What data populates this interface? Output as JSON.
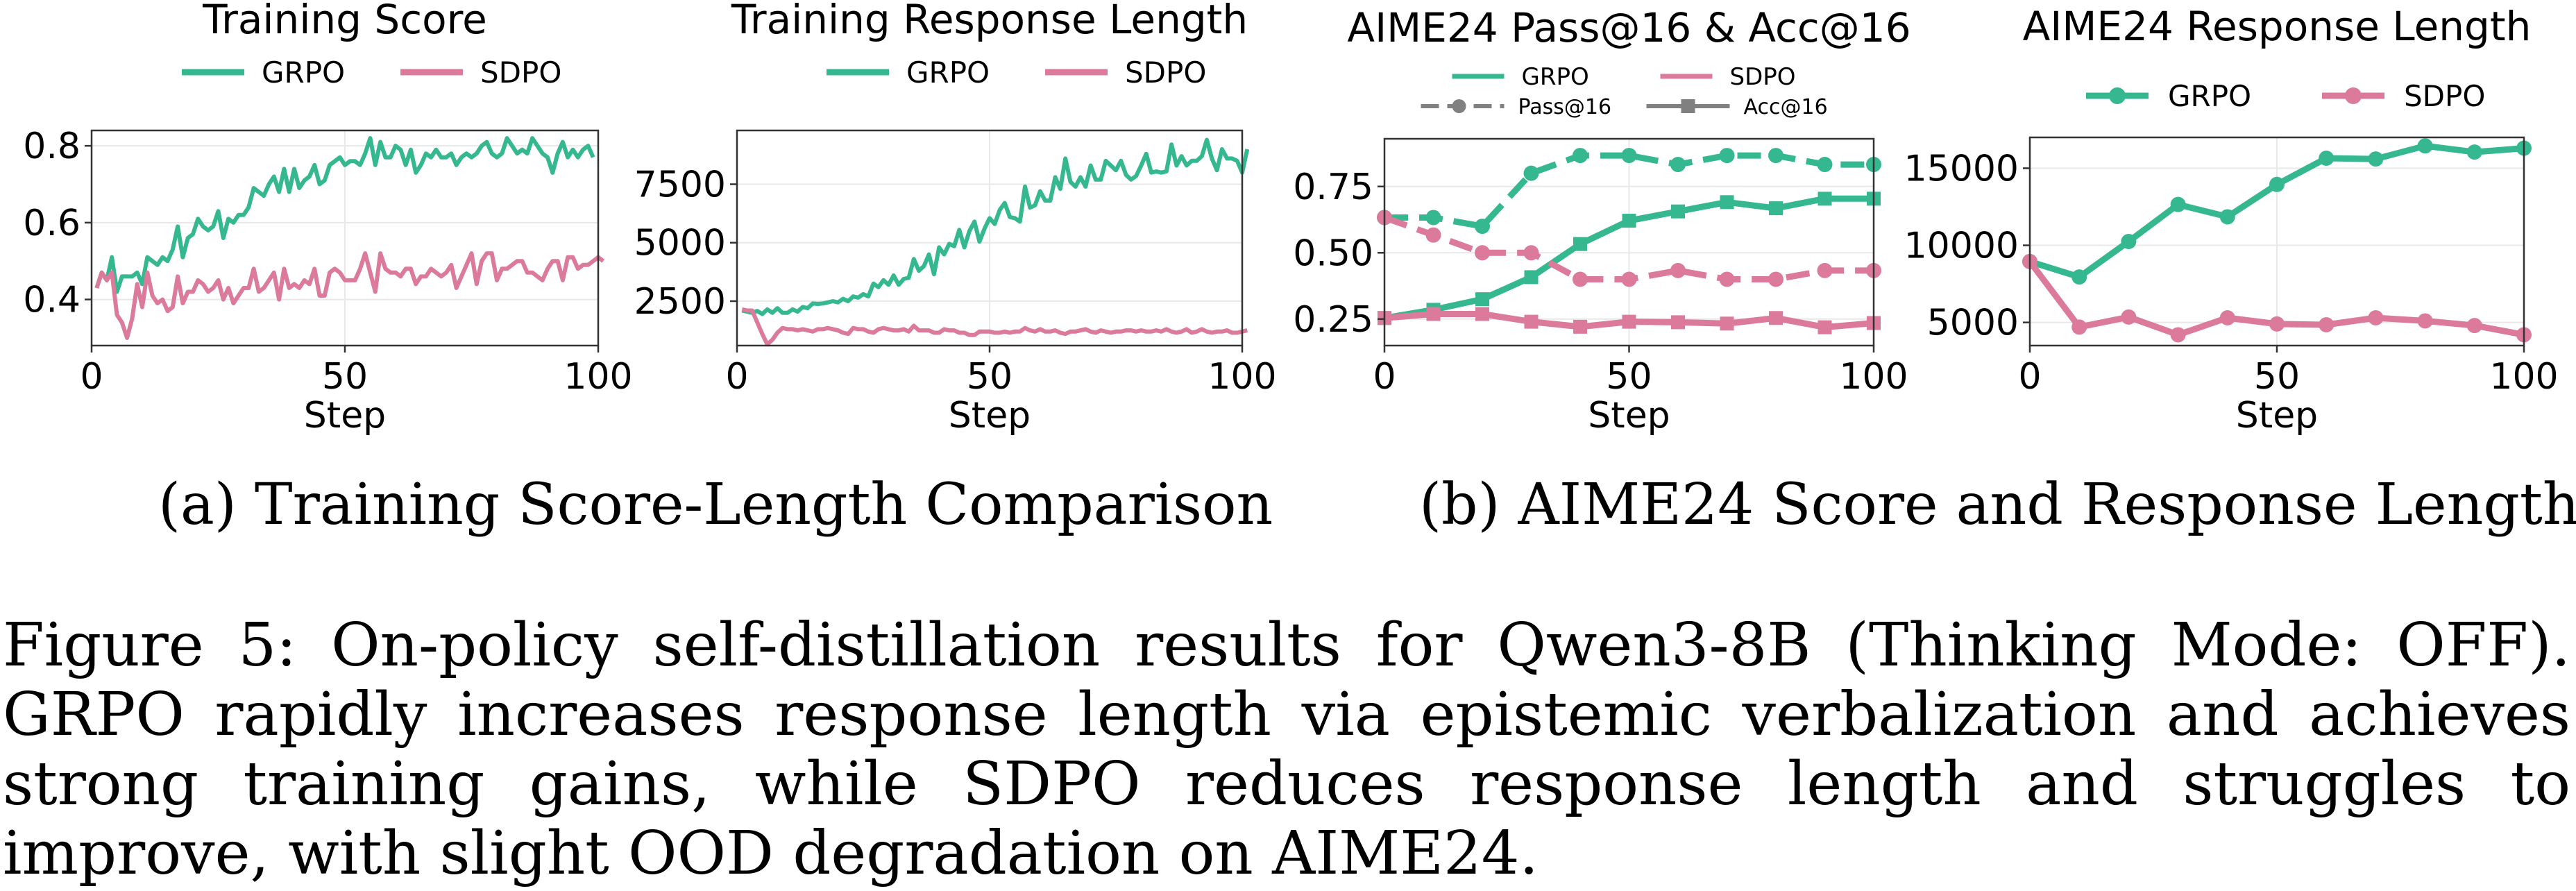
{
  "colors": {
    "grpo": "#35b890",
    "sdpo": "#db7a9a",
    "legend_gray": "#808080",
    "grid": "#e8e8e8",
    "axis": "#333333"
  },
  "subcaptions": {
    "a": "(a) Training Score-Length Comparison",
    "b": "(b) AIME24 Score and Response Length"
  },
  "caption": "Figure 5: On-policy self-distillation results for Qwen3-8B (Thinking Mode: OFF). GRPO rapidly increases response length via epistemic verbalization and achieves strong training gains, while SDPO reduces response length and struggles to improve, with slight OOD degradation on AIME24.",
  "chart_data": [
    {
      "type": "line",
      "title": "Training Score",
      "xlabel": "Step",
      "ylabel": "",
      "xlim": [
        0,
        100
      ],
      "ylim": [
        0.28,
        0.84
      ],
      "xticks": [
        0,
        50,
        100
      ],
      "yticks": [
        0.4,
        0.6,
        0.8
      ],
      "ytick_labels": [
        "0.4",
        "0.6",
        "0.8"
      ],
      "grid": true,
      "legend": {
        "placement": "top",
        "entries": [
          "GRPO",
          "SDPO"
        ]
      },
      "series": [
        {
          "name": "GRPO",
          "x_start": 1,
          "values": [
            0.43,
            0.47,
            0.45,
            0.51,
            0.42,
            0.46,
            0.46,
            0.46,
            0.47,
            0.44,
            0.51,
            0.5,
            0.49,
            0.51,
            0.5,
            0.53,
            0.59,
            0.51,
            0.56,
            0.57,
            0.61,
            0.59,
            0.58,
            0.59,
            0.63,
            0.56,
            0.61,
            0.6,
            0.62,
            0.62,
            0.64,
            0.69,
            0.68,
            0.67,
            0.7,
            0.72,
            0.68,
            0.74,
            0.68,
            0.74,
            0.69,
            0.71,
            0.72,
            0.75,
            0.7,
            0.71,
            0.75,
            0.76,
            0.77,
            0.75,
            0.76,
            0.76,
            0.75,
            0.78,
            0.82,
            0.75,
            0.81,
            0.77,
            0.77,
            0.8,
            0.79,
            0.75,
            0.79,
            0.73,
            0.75,
            0.78,
            0.77,
            0.79,
            0.77,
            0.77,
            0.78,
            0.75,
            0.77,
            0.78,
            0.77,
            0.78,
            0.8,
            0.81,
            0.78,
            0.77,
            0.78,
            0.82,
            0.8,
            0.78,
            0.79,
            0.78,
            0.82,
            0.8,
            0.78,
            0.77,
            0.73,
            0.78,
            0.81,
            0.77,
            0.79,
            0.77,
            0.79,
            0.8,
            0.77
          ]
        },
        {
          "name": "SDPO",
          "x_start": 1,
          "values": [
            0.43,
            0.47,
            0.45,
            0.47,
            0.36,
            0.34,
            0.3,
            0.35,
            0.44,
            0.38,
            0.47,
            0.41,
            0.39,
            0.4,
            0.37,
            0.38,
            0.46,
            0.39,
            0.42,
            0.42,
            0.45,
            0.44,
            0.42,
            0.43,
            0.45,
            0.4,
            0.43,
            0.39,
            0.41,
            0.43,
            0.43,
            0.48,
            0.42,
            0.43,
            0.45,
            0.47,
            0.4,
            0.48,
            0.43,
            0.44,
            0.43,
            0.45,
            0.44,
            0.48,
            0.41,
            0.41,
            0.47,
            0.48,
            0.47,
            0.45,
            0.45,
            0.45,
            0.48,
            0.52,
            0.47,
            0.42,
            0.52,
            0.48,
            0.47,
            0.47,
            0.46,
            0.48,
            0.48,
            0.44,
            0.46,
            0.46,
            0.48,
            0.47,
            0.46,
            0.47,
            0.49,
            0.43,
            0.46,
            0.49,
            0.52,
            0.44,
            0.5,
            0.52,
            0.52,
            0.45,
            0.48,
            0.48,
            0.49,
            0.5,
            0.5,
            0.47,
            0.47,
            0.46,
            0.45,
            0.48,
            0.5,
            0.5,
            0.45,
            0.51,
            0.51,
            0.48,
            0.49,
            0.49,
            0.5,
            0.51,
            0.5
          ]
        }
      ]
    },
    {
      "type": "line",
      "title": "Training Response Length",
      "xlabel": "Step",
      "ylabel": "",
      "xlim": [
        0,
        100
      ],
      "ylim": [
        600,
        9800
      ],
      "xticks": [
        0,
        50,
        100
      ],
      "yticks": [
        2500,
        5000,
        7500
      ],
      "ytick_labels": [
        "2500",
        "5000",
        "7500"
      ],
      "grid": true,
      "legend": {
        "placement": "top",
        "entries": [
          "GRPO",
          "SDPO"
        ]
      },
      "series": [
        {
          "name": "GRPO",
          "x_start": 1,
          "values": [
            2100,
            2050,
            2000,
            2080,
            1950,
            2150,
            2000,
            2200,
            2000,
            2000,
            2150,
            2050,
            2250,
            2200,
            2400,
            2380,
            2400,
            2450,
            2500,
            2450,
            2600,
            2500,
            2700,
            2650,
            2800,
            2700,
            3250,
            3100,
            3400,
            3200,
            3600,
            3200,
            3450,
            3500,
            4300,
            3800,
            4000,
            4500,
            3650,
            4800,
            4500,
            4950,
            4850,
            5550,
            4800,
            5500,
            5900,
            5050,
            5600,
            6050,
            5800,
            6400,
            6700,
            6100,
            6050,
            5900,
            7400,
            6500,
            6600,
            7200,
            6800,
            6800,
            7800,
            7300,
            8600,
            7600,
            7400,
            7800,
            7400,
            8300,
            7700,
            7700,
            8500,
            8300,
            8100,
            8500,
            7900,
            7700,
            7850,
            8300,
            8800,
            8000,
            8050,
            8000,
            8050,
            9200,
            8300,
            8700,
            8300,
            8500,
            8500,
            8700,
            9400,
            8600,
            8100,
            9000,
            8600,
            8600,
            8500,
            8000,
            9000
          ]
        },
        {
          "name": "SDPO",
          "x_start": 1,
          "values": [
            2150,
            2100,
            2100,
            1600,
            1100,
            650,
            850,
            1150,
            1350,
            1300,
            1300,
            1250,
            1300,
            1250,
            1200,
            1300,
            1300,
            1350,
            1300,
            1250,
            1150,
            1100,
            1350,
            1300,
            1300,
            1200,
            1150,
            1300,
            1350,
            1300,
            1250,
            1250,
            1300,
            1200,
            1450,
            1250,
            1250,
            1250,
            1150,
            1150,
            1300,
            1250,
            1250,
            1150,
            1150,
            1050,
            1050,
            1200,
            1200,
            1200,
            1150,
            1150,
            1200,
            1150,
            1200,
            1200,
            1350,
            1250,
            1200,
            1300,
            1200,
            1200,
            1250,
            1150,
            1100,
            1200,
            1200,
            1250,
            1300,
            1200,
            1150,
            1250,
            1200,
            1150,
            1200,
            1200,
            1250,
            1250,
            1200,
            1250,
            1200,
            1200,
            1250,
            1200,
            1300,
            1200,
            1150,
            1200,
            1300,
            1150,
            1200,
            1300,
            1200,
            1150,
            1200,
            1200,
            1250,
            1150,
            1150,
            1200,
            1250
          ]
        }
      ]
    },
    {
      "type": "line",
      "title": "AIME24 Pass@16 & Acc@16",
      "xlabel": "Step",
      "ylabel": "",
      "xlim": [
        0,
        100
      ],
      "ylim": [
        0.15,
        0.93
      ],
      "xticks": [
        0,
        50,
        100
      ],
      "yticks": [
        0.25,
        0.5,
        0.75
      ],
      "ytick_labels": [
        "0.25",
        "0.50",
        "0.75"
      ],
      "grid": true,
      "legend": {
        "placement": "top",
        "entries": [
          "GRPO",
          "SDPO",
          "Pass@16",
          "Acc@16"
        ]
      },
      "x": [
        0,
        10,
        20,
        30,
        40,
        50,
        60,
        70,
        80,
        90,
        100
      ],
      "series": [
        {
          "name": "GRPO Pass@16",
          "style": "dashed-circle",
          "values": [
            0.633,
            0.633,
            0.6,
            0.8,
            0.867,
            0.867,
            0.833,
            0.867,
            0.867,
            0.833,
            0.833
          ]
        },
        {
          "name": "GRPO Acc@16",
          "style": "solid-square",
          "values": [
            0.254,
            0.285,
            0.325,
            0.408,
            0.533,
            0.621,
            0.656,
            0.691,
            0.668,
            0.704,
            0.704
          ]
        },
        {
          "name": "SDPO Pass@16",
          "style": "dashed-circle",
          "values": [
            0.633,
            0.567,
            0.5,
            0.5,
            0.4,
            0.4,
            0.433,
            0.4,
            0.4,
            0.433,
            0.433
          ]
        },
        {
          "name": "SDPO Acc@16",
          "style": "solid-square",
          "values": [
            0.254,
            0.269,
            0.269,
            0.24,
            0.221,
            0.24,
            0.238,
            0.233,
            0.254,
            0.219,
            0.235
          ]
        }
      ]
    },
    {
      "type": "line",
      "title": "AIME24 Response Length",
      "xlabel": "Step",
      "ylabel": "",
      "xlim": [
        0,
        100
      ],
      "ylim": [
        3500,
        17000
      ],
      "xticks": [
        0,
        50,
        100
      ],
      "yticks": [
        5000,
        10000,
        15000
      ],
      "ytick_labels": [
        "5000",
        "10000",
        "15000"
      ],
      "grid": true,
      "legend": {
        "placement": "top",
        "entries": [
          "GRPO",
          "SDPO"
        ]
      },
      "x": [
        0,
        10,
        20,
        30,
        40,
        50,
        60,
        70,
        80,
        90,
        100
      ],
      "series": [
        {
          "name": "GRPO",
          "style": "solid-circle",
          "values": [
            8950,
            7950,
            10250,
            12650,
            11850,
            13950,
            15650,
            15600,
            16450,
            16050,
            16300
          ]
        },
        {
          "name": "SDPO",
          "style": "solid-circle",
          "values": [
            8950,
            4700,
            5350,
            4200,
            5300,
            4900,
            4850,
            5300,
            5100,
            4800,
            4200
          ]
        }
      ]
    }
  ]
}
